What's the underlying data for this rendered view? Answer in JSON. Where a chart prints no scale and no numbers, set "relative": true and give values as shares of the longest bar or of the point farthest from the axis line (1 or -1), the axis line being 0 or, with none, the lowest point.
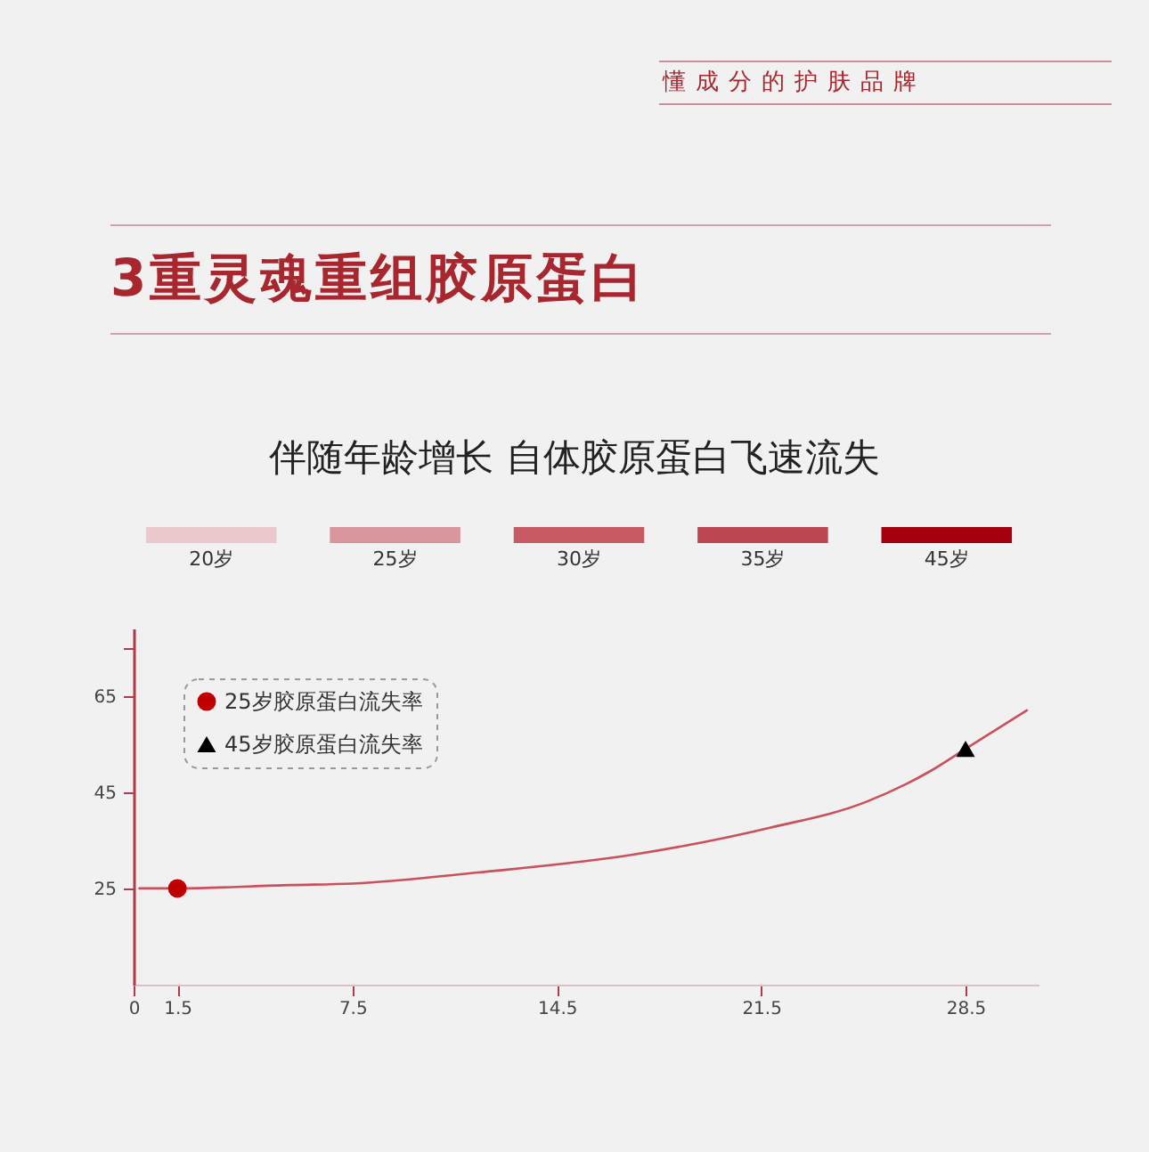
{
  "chart_data": [
    {
      "type": "bar",
      "title": "3重灵魂重组胶原蛋白",
      "subtitle": "伴随年龄增长 自体胶原蛋白飞速流失",
      "annotations": [
        "懂成分的护肤品牌"
      ],
      "categories": [
        "20岁",
        "25岁",
        "30岁",
        "35岁",
        "45岁"
      ],
      "values": [
        1,
        1,
        1,
        1,
        1
      ],
      "colors": [
        "#ebc8cc",
        "#d8959b",
        "#c65b64",
        "#bc4651",
        "#a5000f"
      ],
      "relative": true
    },
    {
      "type": "line",
      "xlim": [
        0,
        31
      ],
      "xticks": [
        0,
        1.5,
        7.5,
        14.5,
        21.5,
        28.5
      ],
      "ylim": [
        5,
        79
      ],
      "yticks": [
        25,
        45,
        65,
        {
          "value": 75,
          "label": null
        }
      ],
      "legend": "top left",
      "series": [
        {
          "type": "line",
          "color": "#c9505c",
          "x": [
            0.2,
            1.5,
            5.4,
            7.5,
            11.8,
            17.1,
            21.8,
            25.1,
            27.3,
            28.5,
            30.6
          ],
          "values": [
            25,
            25,
            25.7,
            26,
            28.3,
            32,
            37.6,
            43,
            49.4,
            54,
            62
          ]
        },
        {
          "type": "scatter",
          "name": "25岁胶原蛋白流失率",
          "color": "#c00000",
          "marker": "circle",
          "x": [
            1.5
          ],
          "values": [
            25
          ]
        },
        {
          "type": "scatter",
          "name": "45岁胶原蛋白流失率",
          "color": "#000000",
          "marker": "triangle",
          "x": [
            28.5
          ],
          "values": [
            54
          ]
        }
      ]
    }
  ]
}
